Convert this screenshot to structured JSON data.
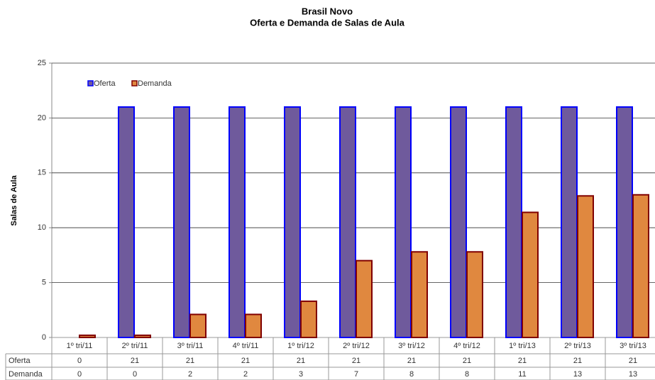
{
  "chart_data": {
    "type": "bar",
    "title": "Brasil Novo",
    "subtitle": "Oferta e Demanda de Salas de Aula",
    "y_label": "Salas de Aula",
    "categories": [
      "1º tri/11",
      "2º tri/11",
      "3º tri/11",
      "4º tri/11",
      "1º tri/12",
      "2º tri/12",
      "3º tri/12",
      "4º tri/12",
      "1º tri/13",
      "2º tri/13",
      "3º tri/13"
    ],
    "series": [
      {
        "name": "Oferta",
        "color": "#6f5a9c",
        "edge_color": "#0000ff",
        "values": [
          0,
          21,
          21,
          21,
          21,
          21,
          21,
          21,
          21,
          21,
          21
        ]
      },
      {
        "name": "Demanda",
        "color": "#e0883f",
        "edge_color": "#800000",
        "values": [
          0.2,
          0.2,
          2.1,
          2.1,
          3.3,
          7,
          7.8,
          7.8,
          11.4,
          12.9,
          13
        ],
        "value_labels": [
          "0",
          "0",
          "2",
          "2",
          "3",
          "7",
          "8",
          "8",
          "11",
          "13",
          "13"
        ]
      }
    ],
    "ylim": [
      0,
      25
    ],
    "yticks": [
      0,
      5,
      10,
      15,
      20,
      25
    ],
    "grid": true,
    "legend": "top-left"
  }
}
